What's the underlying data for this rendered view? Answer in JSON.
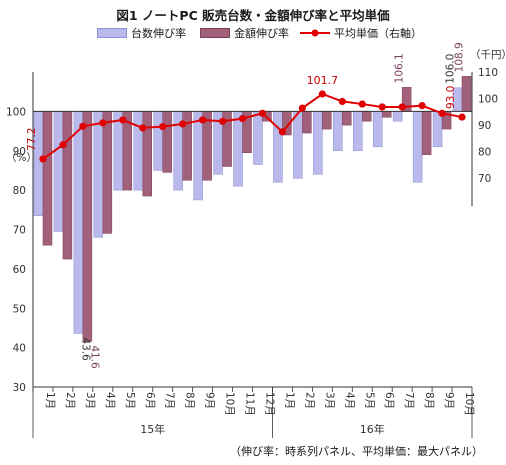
{
  "title": "図1 ノートPC 販売台数・金額伸び率と平均単価",
  "legend": {
    "units_label": "台数伸び率",
    "value_label": "金額伸び率",
    "price_label": "平均単価（右軸）"
  },
  "left_axis_unit": "（%）",
  "right_axis_unit": "（千円）",
  "footnote": "（伸び率：時系列パネル、平均単価：最大パネル）",
  "colors": {
    "units_bar": "#b9b9ec",
    "units_bar_edge": "#8f8fd8",
    "value_bar": "#a1617a",
    "value_bar_edge": "#7d3f58",
    "price_line": "#e00000",
    "axis": "#333333",
    "grid": "#d9d9d9",
    "label_red": "#cc0000",
    "label_purple": "#7a3e5c"
  },
  "chart_data": {
    "type": "bar",
    "categories": [
      "1月",
      "2月",
      "3月",
      "4月",
      "5月",
      "6月",
      "7月",
      "8月",
      "9月",
      "10月",
      "11月",
      "12月",
      "1月",
      "2月",
      "3月",
      "4月",
      "5月",
      "6月",
      "7月",
      "8月",
      "9月",
      "10月"
    ],
    "year_groups": [
      {
        "label": "15年",
        "start": 0,
        "end": 11
      },
      {
        "label": "16年",
        "start": 12,
        "end": 21
      }
    ],
    "series": [
      {
        "name": "台数伸び率",
        "axis": "left",
        "values": [
          73.5,
          69.5,
          43.6,
          68.0,
          80.0,
          80.0,
          85.0,
          80.0,
          77.5,
          84.0,
          81.0,
          86.5,
          82.0,
          83.0,
          84.0,
          90.0,
          90.0,
          91.0,
          97.5,
          82.0,
          91.0,
          106.0
        ]
      },
      {
        "name": "金額伸び率",
        "axis": "left",
        "values": [
          66.0,
          62.5,
          41.6,
          69.0,
          80.0,
          78.5,
          84.5,
          82.5,
          82.5,
          86.0,
          89.5,
          97.5,
          94.0,
          94.5,
          95.5,
          96.5,
          97.5,
          98.5,
          106.1,
          89.0,
          95.5,
          108.9
        ]
      },
      {
        "name": "平均単価（右軸）",
        "axis": "right",
        "type": "line",
        "values": [
          77.2,
          82.5,
          89.5,
          90.8,
          91.9,
          88.9,
          89.4,
          90.4,
          91.9,
          91.4,
          92.4,
          94.4,
          87.4,
          96.4,
          101.7,
          98.9,
          97.9,
          96.8,
          96.8,
          97.3,
          94.4,
          93.0
        ]
      }
    ],
    "left_axis": {
      "min": 30,
      "max": 110,
      "ticks": [
        30,
        40,
        50,
        60,
        70,
        80,
        90,
        100,
        110
      ],
      "baseline": 100
    },
    "right_axis": {
      "min": 70,
      "max": 110,
      "ticks": [
        70,
        80,
        90,
        100,
        110
      ]
    },
    "data_labels": [
      {
        "series": "台数伸び率",
        "index": 2,
        "text": "43.6",
        "color_key": "axis"
      },
      {
        "series": "金額伸び率",
        "index": 2,
        "text": "41.6",
        "color_key": "label_purple"
      },
      {
        "series": "金額伸び率",
        "index": 18,
        "text": "106.1",
        "color_key": "label_purple"
      },
      {
        "series": "台数伸び率",
        "index": 21,
        "text": "106.0",
        "color_key": "axis"
      },
      {
        "series": "金額伸び率",
        "index": 21,
        "text": "108.9",
        "color_key": "label_purple"
      },
      {
        "series": "平均単価（右軸）",
        "index": 0,
        "text": "77.2",
        "color_key": "label_red"
      },
      {
        "series": "平均単価（右軸）",
        "index": 14,
        "text": "101.7",
        "color_key": "label_red"
      },
      {
        "series": "平均単価（右軸）",
        "index": 21,
        "text": "93.0",
        "color_key": "label_red"
      }
    ],
    "grid": false
  }
}
